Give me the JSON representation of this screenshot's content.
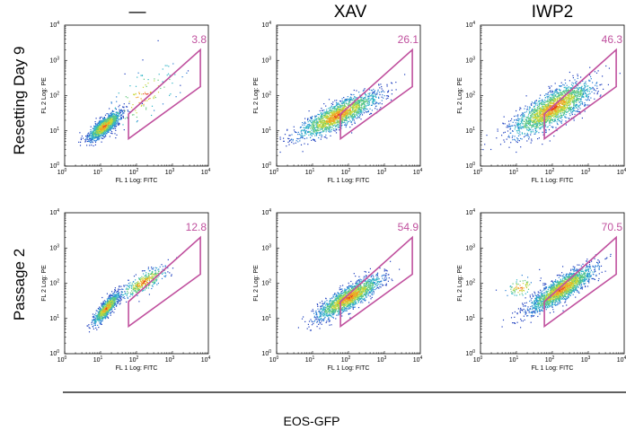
{
  "column_labels": [
    "—",
    "XAV",
    "IWP2"
  ],
  "row_labels": [
    "Resetting Day 9",
    "Passage 2"
  ],
  "shared_xlabel": "EOS-GFP",
  "colors": {
    "gate": "#c0509e",
    "density": [
      "#1f3fbf",
      "#2a7fd6",
      "#2fb5c6",
      "#5fc87a",
      "#c9d83a",
      "#f2a023",
      "#e83a1e"
    ]
  },
  "chart_data": [
    {
      "type": "scatter",
      "row": 0,
      "col": 0,
      "xlabel": "FL 1 Log: FITC",
      "ylabel": "FL 2 Log: PE",
      "xscale": "log",
      "yscale": "log",
      "xlim": [
        1,
        10000
      ],
      "ylim": [
        1,
        10000
      ],
      "x_ticks": [
        "10",
        "10",
        "10",
        "10",
        "10"
      ],
      "x_tick_exponents": [
        "0",
        "1",
        "2",
        "3",
        "4"
      ],
      "y_ticks": [
        "10",
        "10",
        "10",
        "10",
        "10"
      ],
      "y_tick_exponents": [
        "0",
        "1",
        "2",
        "3",
        "4"
      ],
      "gate_percent": "3.8",
      "gate_polygon": [
        [
          60,
          30
        ],
        [
          6000,
          2000
        ],
        [
          6000,
          180
        ],
        [
          60,
          6
        ]
      ]
    },
    {
      "type": "scatter",
      "row": 0,
      "col": 1,
      "xlabel": "FL 1 Log: FITC",
      "ylabel": "FL 2 Log: PE",
      "xscale": "log",
      "yscale": "log",
      "xlim": [
        1,
        10000
      ],
      "ylim": [
        1,
        10000
      ],
      "x_ticks": [
        "10",
        "10",
        "10",
        "10",
        "10"
      ],
      "x_tick_exponents": [
        "0",
        "1",
        "2",
        "3",
        "4"
      ],
      "y_ticks": [
        "10",
        "10",
        "10",
        "10",
        "10"
      ],
      "y_tick_exponents": [
        "0",
        "1",
        "2",
        "3",
        "4"
      ],
      "gate_percent": "26.1",
      "gate_polygon": [
        [
          60,
          30
        ],
        [
          6000,
          2000
        ],
        [
          6000,
          180
        ],
        [
          60,
          6
        ]
      ]
    },
    {
      "type": "scatter",
      "row": 0,
      "col": 2,
      "xlabel": "FL 1 Log: FITC",
      "ylabel": "FL 2 Log: PE",
      "xscale": "log",
      "yscale": "log",
      "xlim": [
        1,
        10000
      ],
      "ylim": [
        1,
        10000
      ],
      "x_ticks": [
        "10",
        "10",
        "10",
        "10",
        "10"
      ],
      "x_tick_exponents": [
        "0",
        "1",
        "2",
        "3",
        "4"
      ],
      "y_ticks": [
        "10",
        "10",
        "10",
        "10",
        "10"
      ],
      "y_tick_exponents": [
        "0",
        "1",
        "2",
        "3",
        "4"
      ],
      "gate_percent": "46.3",
      "gate_polygon": [
        [
          60,
          30
        ],
        [
          6000,
          2000
        ],
        [
          6000,
          180
        ],
        [
          60,
          6
        ]
      ]
    },
    {
      "type": "scatter",
      "row": 1,
      "col": 0,
      "xlabel": "FL 1 Log: FITC",
      "ylabel": "FL 2 Log: PE",
      "xscale": "log",
      "yscale": "log",
      "xlim": [
        1,
        10000
      ],
      "ylim": [
        1,
        10000
      ],
      "x_ticks": [
        "10",
        "10",
        "10",
        "10",
        "10"
      ],
      "x_tick_exponents": [
        "0",
        "1",
        "2",
        "3",
        "4"
      ],
      "y_ticks": [
        "10",
        "10",
        "10",
        "10",
        "10"
      ],
      "y_tick_exponents": [
        "0",
        "1",
        "2",
        "3",
        "4"
      ],
      "gate_percent": "12.8",
      "gate_polygon": [
        [
          60,
          30
        ],
        [
          6000,
          2000
        ],
        [
          6000,
          180
        ],
        [
          60,
          6
        ]
      ]
    },
    {
      "type": "scatter",
      "row": 1,
      "col": 1,
      "xlabel": "FL 1 Log: FITC",
      "ylabel": "FL 2 Log: PE",
      "xscale": "log",
      "yscale": "log",
      "xlim": [
        1,
        10000
      ],
      "ylim": [
        1,
        10000
      ],
      "x_ticks": [
        "10",
        "10",
        "10",
        "10",
        "10"
      ],
      "x_tick_exponents": [
        "0",
        "1",
        "2",
        "3",
        "4"
      ],
      "y_ticks": [
        "10",
        "10",
        "10",
        "10",
        "10"
      ],
      "y_tick_exponents": [
        "0",
        "1",
        "2",
        "3",
        "4"
      ],
      "gate_percent": "54.9",
      "gate_polygon": [
        [
          60,
          30
        ],
        [
          6000,
          2000
        ],
        [
          6000,
          180
        ],
        [
          60,
          6
        ]
      ]
    },
    {
      "type": "scatter",
      "row": 1,
      "col": 2,
      "xlabel": "FL 1 Log: FITC",
      "ylabel": "FL 2 Log: PE",
      "xscale": "log",
      "yscale": "log",
      "xlim": [
        1,
        10000
      ],
      "ylim": [
        1,
        10000
      ],
      "x_ticks": [
        "10",
        "10",
        "10",
        "10",
        "10"
      ],
      "x_tick_exponents": [
        "0",
        "1",
        "2",
        "3",
        "4"
      ],
      "y_ticks": [
        "10",
        "10",
        "10",
        "10",
        "10"
      ],
      "y_tick_exponents": [
        "0",
        "1",
        "2",
        "3",
        "4"
      ],
      "gate_percent": "70.5",
      "gate_polygon": [
        [
          60,
          30
        ],
        [
          6000,
          2000
        ],
        [
          6000,
          180
        ],
        [
          60,
          6
        ]
      ]
    }
  ]
}
